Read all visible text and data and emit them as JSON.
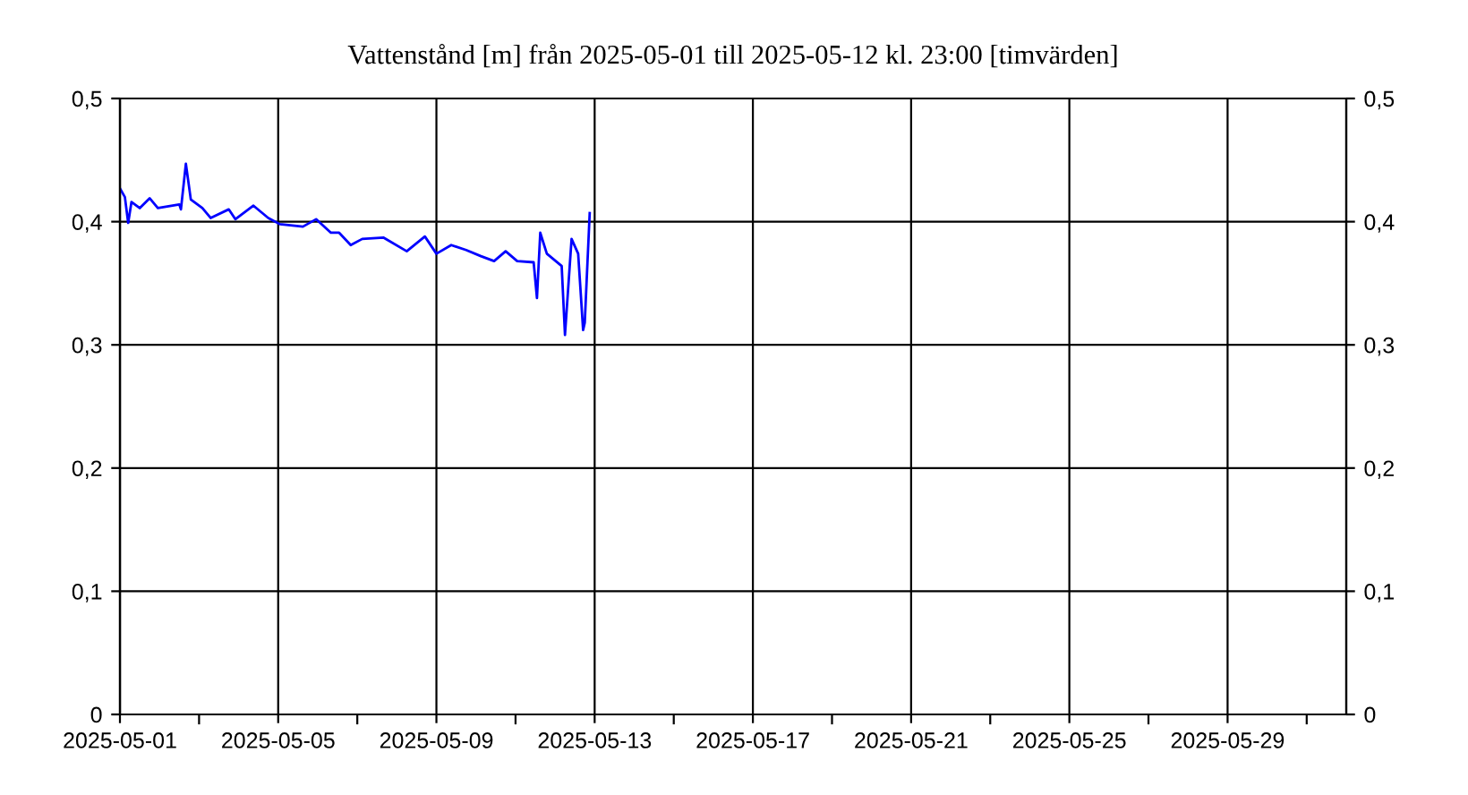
{
  "chart_data": {
    "type": "line",
    "title": "Vattenstånd [m] från 2025-05-01 till 2025-05-12 kl. 23:00 [timvärden]",
    "series": [
      {
        "color": "#0000ff",
        "x": [
          "2025-05-01T00:00",
          "2025-05-01T03:00",
          "2025-05-01T05:00",
          "2025-05-01T07:00",
          "2025-05-01T12:00",
          "2025-05-01T18:00",
          "2025-05-01T23:00",
          "2025-05-02T12:00",
          "2025-05-02T13:00",
          "2025-05-02T16:00",
          "2025-05-02T19:00",
          "2025-05-03T02:00",
          "2025-05-03T07:00",
          "2025-05-03T18:00",
          "2025-05-03T22:00",
          "2025-05-04T09:00",
          "2025-05-04T18:00",
          "2025-05-05T01:00",
          "2025-05-05T15:00",
          "2025-05-05T23:00",
          "2025-05-06T08:00",
          "2025-05-06T13:00",
          "2025-05-06T20:00",
          "2025-05-07T03:00",
          "2025-05-07T16:00",
          "2025-05-08T06:00",
          "2025-05-08T17:00",
          "2025-05-09T00:00",
          "2025-05-09T09:00",
          "2025-05-09T18:00",
          "2025-05-10T03:00",
          "2025-05-10T11:00",
          "2025-05-10T18:00",
          "2025-05-11T01:00",
          "2025-05-11T11:00",
          "2025-05-11T13:00",
          "2025-05-11T15:00",
          "2025-05-11T19:00",
          "2025-05-12T04:00",
          "2025-05-12T06:00",
          "2025-05-12T10:00",
          "2025-05-12T14:00",
          "2025-05-12T17:00",
          "2025-05-12T18:00",
          "2025-05-12T21:00"
        ],
        "values": [
          0.427,
          0.42,
          0.399,
          0.416,
          0.411,
          0.419,
          0.411,
          0.414,
          0.41,
          0.447,
          0.418,
          0.411,
          0.403,
          0.41,
          0.402,
          0.413,
          0.403,
          0.398,
          0.396,
          0.402,
          0.391,
          0.391,
          0.381,
          0.386,
          0.387,
          0.376,
          0.388,
          0.374,
          0.381,
          0.377,
          0.372,
          0.368,
          0.376,
          0.368,
          0.367,
          0.338,
          0.391,
          0.374,
          0.364,
          0.308,
          0.386,
          0.374,
          0.312,
          0.318,
          0.407
        ]
      }
    ],
    "xlim": [
      "2025-05-01",
      "2025-06-01"
    ],
    "xticks": [
      {
        "value": "2025-05-01",
        "label": "2025-05-01"
      },
      {
        "value": "2025-05-03",
        "label": null
      },
      {
        "value": "2025-05-05",
        "label": "2025-05-05"
      },
      {
        "value": "2025-05-07",
        "label": null
      },
      {
        "value": "2025-05-09",
        "label": "2025-05-09"
      },
      {
        "value": "2025-05-11",
        "label": null
      },
      {
        "value": "2025-05-13",
        "label": "2025-05-13"
      },
      {
        "value": "2025-05-15",
        "label": null
      },
      {
        "value": "2025-05-17",
        "label": "2025-05-17"
      },
      {
        "value": "2025-05-19",
        "label": null
      },
      {
        "value": "2025-05-21",
        "label": "2025-05-21"
      },
      {
        "value": "2025-05-23",
        "label": null
      },
      {
        "value": "2025-05-25",
        "label": "2025-05-25"
      },
      {
        "value": "2025-05-27",
        "label": null
      },
      {
        "value": "2025-05-29",
        "label": "2025-05-29"
      },
      {
        "value": "2025-05-31",
        "label": null
      }
    ],
    "ylim": [
      0,
      0.5
    ],
    "yticks": [
      0,
      {
        "value": 0.1,
        "label": "0,1"
      },
      {
        "value": 0.2,
        "label": "0,2"
      },
      {
        "value": 0.3,
        "label": "0,3"
      },
      {
        "value": 0.4,
        "label": "0,4"
      },
      {
        "value": 0.5,
        "label": "0,5"
      }
    ],
    "y2lim": [
      0,
      0.5
    ],
    "y2ticks": [
      0,
      {
        "value": 0.1,
        "label": "0,1"
      },
      {
        "value": 0.2,
        "label": "0,2"
      },
      {
        "value": 0.3,
        "label": "0,3"
      },
      {
        "value": 0.4,
        "label": "0,4"
      },
      {
        "value": 0.5,
        "label": "0,5"
      }
    ],
    "grid": true,
    "legend": false,
    "marker": "none",
    "line_style": "solid"
  }
}
